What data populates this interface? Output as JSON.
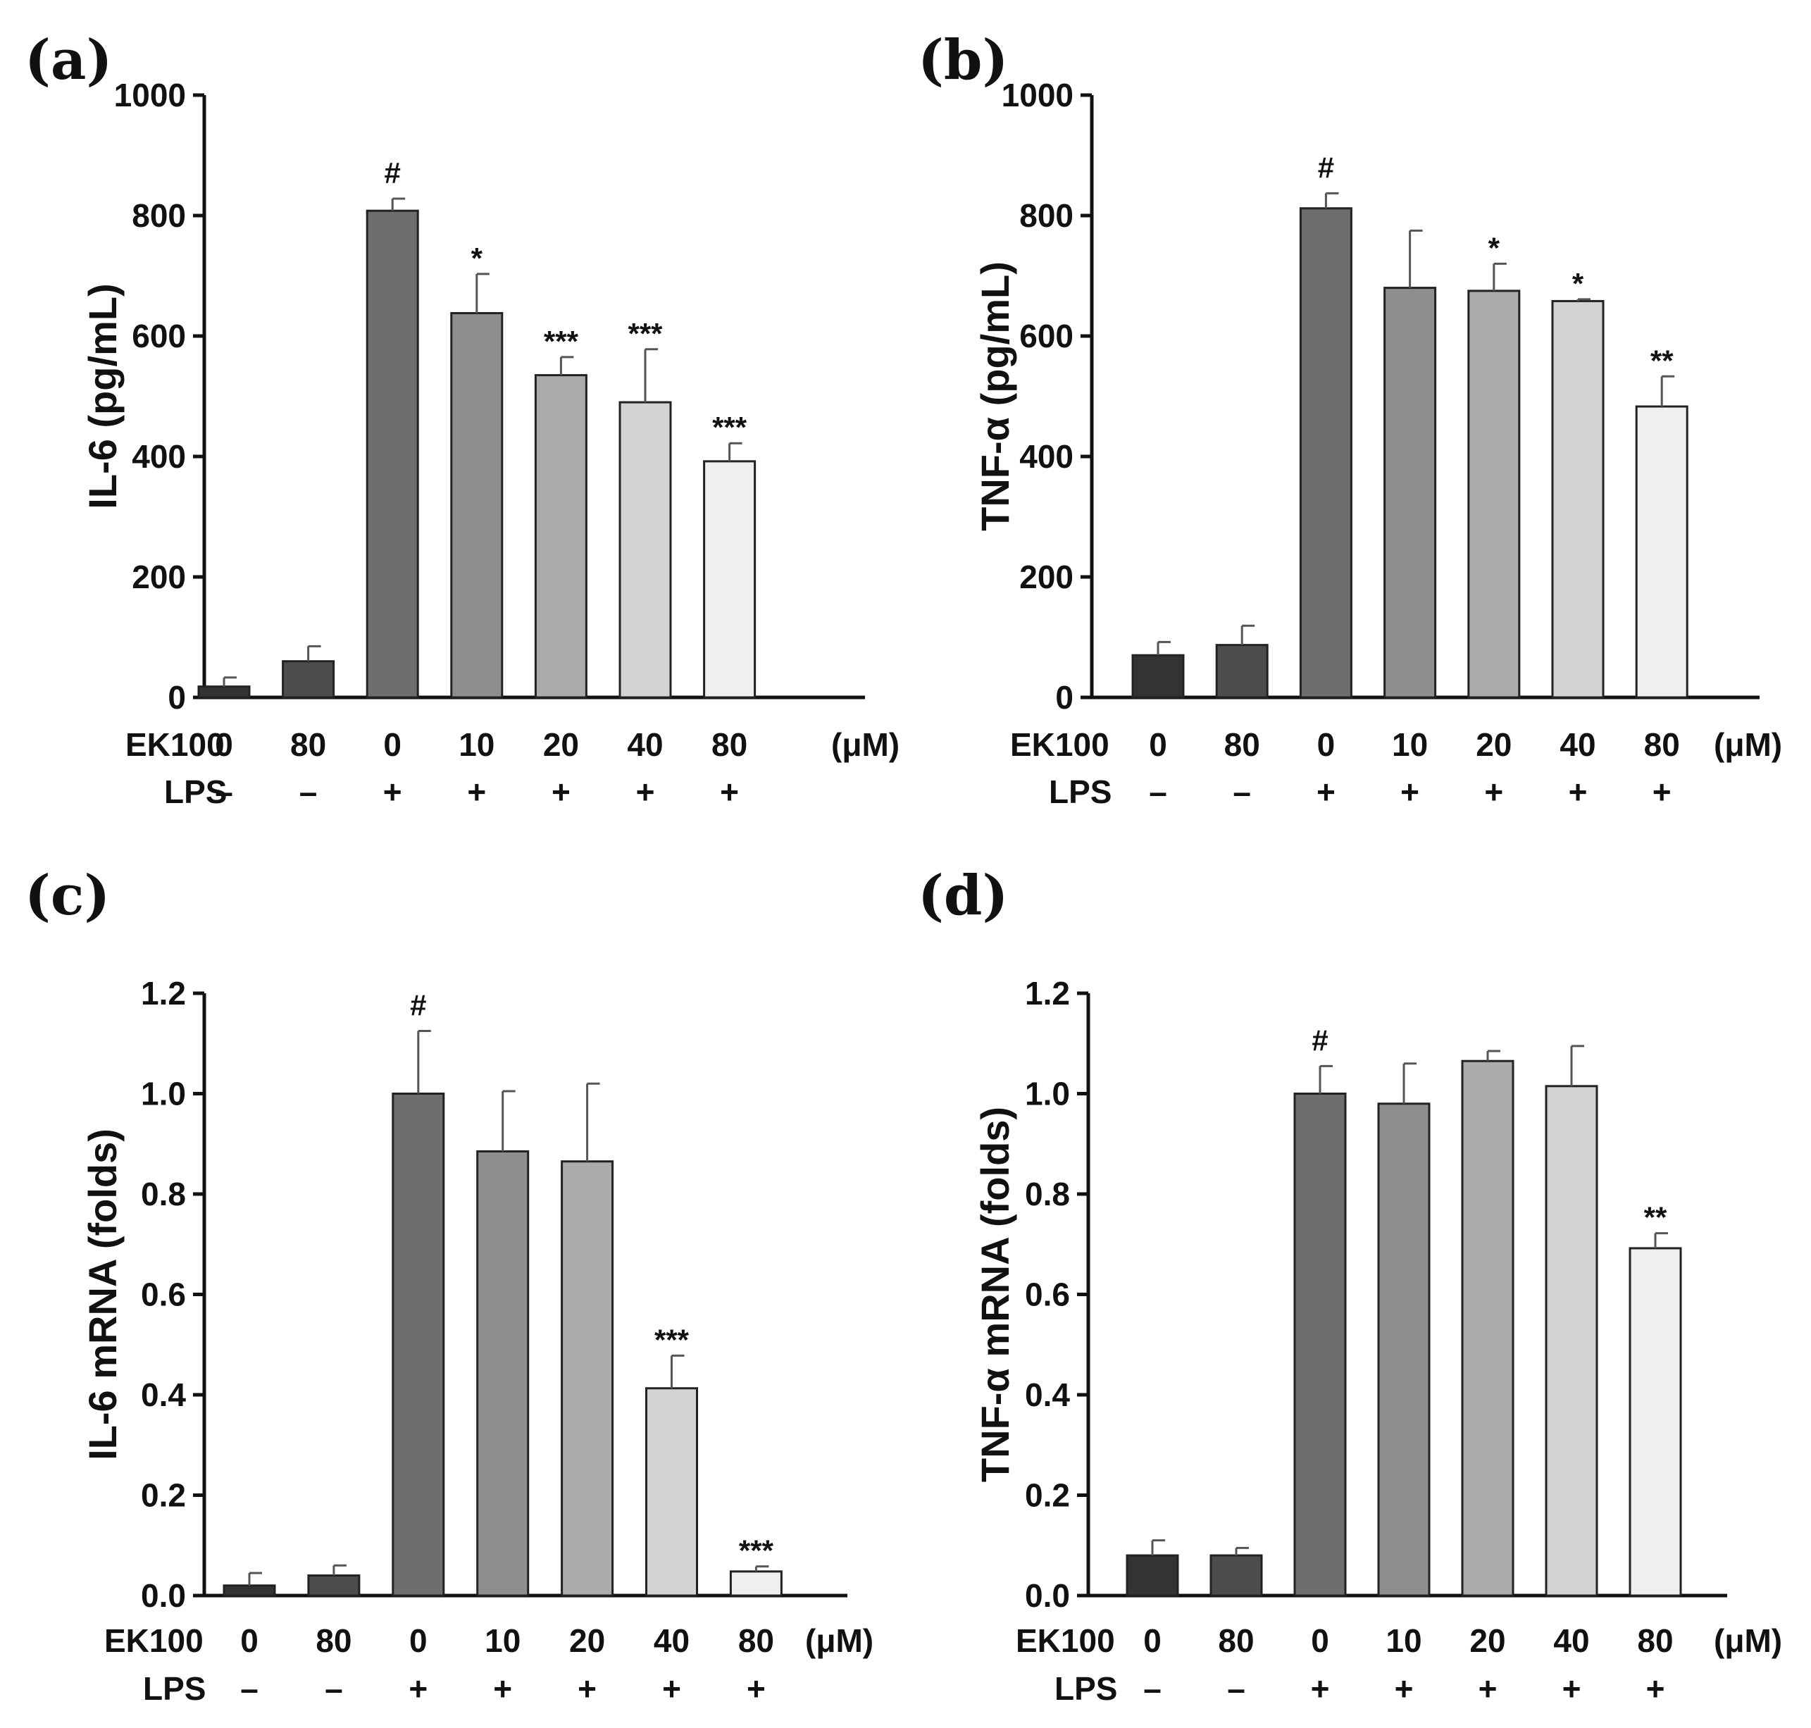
{
  "chart_data": [
    {
      "type": "bar",
      "panel_label": "(a)",
      "ylabel": "IL-6 (pg/mL)",
      "ylim": [
        0,
        1000
      ],
      "yticks": [
        "0",
        "200",
        "400",
        "600",
        "800",
        "1000"
      ],
      "ytick_values": [
        0,
        200,
        400,
        600,
        800,
        1000
      ],
      "row_labels": [
        "EK100",
        "LPS"
      ],
      "unit_label": "(μM)",
      "ek100": [
        "0",
        "80",
        "0",
        "10",
        "20",
        "40",
        "80"
      ],
      "lps": [
        "–",
        "–",
        "+",
        "+",
        "+",
        "+",
        "+"
      ],
      "values": [
        18,
        60,
        808,
        638,
        535,
        490,
        392
      ],
      "errors": [
        15,
        25,
        20,
        65,
        30,
        88,
        30
      ],
      "significance": [
        "",
        "",
        "#",
        "*",
        "***",
        "***",
        "***"
      ],
      "colors": [
        "#333333",
        "#4d4d4d",
        "#6e6e6e",
        "#8e8e8e",
        "#ababab",
        "#d3d3d3",
        "#efefef"
      ]
    },
    {
      "type": "bar",
      "panel_label": "(b)",
      "ylabel": "TNF-α (pg/mL)",
      "ylim": [
        0,
        1000
      ],
      "yticks": [
        "0",
        "200",
        "400",
        "600",
        "800",
        "1000"
      ],
      "ytick_values": [
        0,
        200,
        400,
        600,
        800,
        1000
      ],
      "row_labels": [
        "EK100",
        "LPS"
      ],
      "unit_label": "(μM)",
      "ek100": [
        "0",
        "80",
        "0",
        "10",
        "20",
        "40",
        "80"
      ],
      "lps": [
        "–",
        "–",
        "+",
        "+",
        "+",
        "+",
        "+"
      ],
      "values": [
        70,
        87,
        812,
        680,
        675,
        658,
        483
      ],
      "errors": [
        22,
        32,
        25,
        95,
        45,
        3,
        50
      ],
      "significance": [
        "",
        "",
        "#",
        "",
        "*",
        "*",
        "**"
      ],
      "colors": [
        "#333333",
        "#4d4d4d",
        "#6e6e6e",
        "#8e8e8e",
        "#ababab",
        "#d3d3d3",
        "#efefef"
      ]
    },
    {
      "type": "bar",
      "panel_label": "(c)",
      "ylabel": "IL-6 mRNA (folds)",
      "ylim": [
        0,
        1.2
      ],
      "yticks": [
        "0.0",
        "0.2",
        "0.4",
        "0.6",
        "0.8",
        "1.0",
        "1.2"
      ],
      "ytick_values": [
        0,
        0.2,
        0.4,
        0.6,
        0.8,
        1.0,
        1.2
      ],
      "row_labels": [
        "EK100",
        "LPS"
      ],
      "unit_label": "(μM)",
      "ek100": [
        "0",
        "80",
        "0",
        "10",
        "20",
        "40",
        "80"
      ],
      "lps": [
        "–",
        "–",
        "+",
        "+",
        "+",
        "+",
        "+"
      ],
      "values": [
        0.02,
        0.04,
        1.0,
        0.885,
        0.865,
        0.413,
        0.048
      ],
      "errors": [
        0.025,
        0.02,
        0.125,
        0.12,
        0.155,
        0.065,
        0.01
      ],
      "significance": [
        "",
        "",
        "#",
        "",
        "",
        "***",
        "***"
      ],
      "colors": [
        "#333333",
        "#4d4d4d",
        "#6e6e6e",
        "#8e8e8e",
        "#ababab",
        "#d3d3d3",
        "#efefef"
      ]
    },
    {
      "type": "bar",
      "panel_label": "(d)",
      "ylabel": "TNF-α mRNA (folds)",
      "ylim": [
        0,
        1.2
      ],
      "yticks": [
        "0.0",
        "0.2",
        "0.4",
        "0.6",
        "0.8",
        "1.0",
        "1.2"
      ],
      "ytick_values": [
        0,
        0.2,
        0.4,
        0.6,
        0.8,
        1.0,
        1.2
      ],
      "row_labels": [
        "EK100",
        "LPS"
      ],
      "unit_label": "(μM)",
      "ek100": [
        "0",
        "80",
        "0",
        "10",
        "20",
        "40",
        "80"
      ],
      "lps": [
        "–",
        "–",
        "+",
        "+",
        "+",
        "+",
        "+"
      ],
      "values": [
        0.08,
        0.08,
        1.0,
        0.98,
        1.065,
        1.015,
        0.692
      ],
      "errors": [
        0.03,
        0.015,
        0.055,
        0.08,
        0.02,
        0.08,
        0.03
      ],
      "significance": [
        "",
        "",
        "#",
        "",
        "",
        "",
        "**"
      ],
      "colors": [
        "#333333",
        "#4d4d4d",
        "#6e6e6e",
        "#8e8e8e",
        "#ababab",
        "#d3d3d3",
        "#efefef"
      ]
    }
  ]
}
